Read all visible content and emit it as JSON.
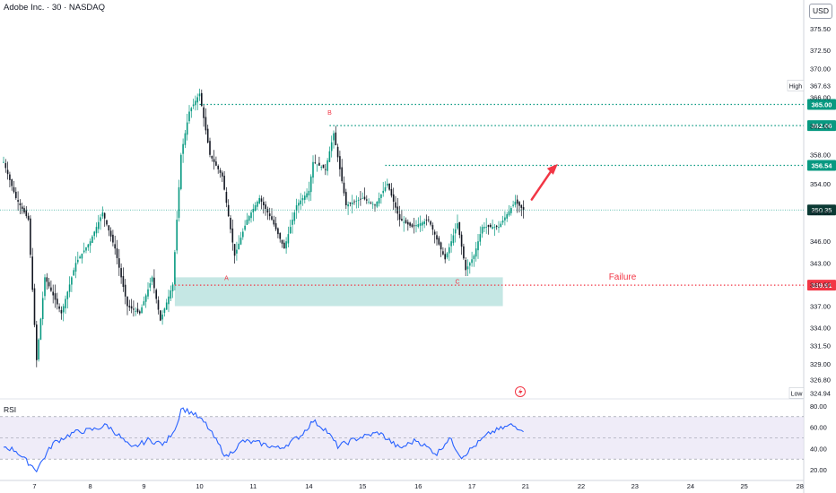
{
  "header": {
    "title": "Adobe Inc. · 30 · NASDAQ",
    "currency": "USD"
  },
  "colors": {
    "up": "#089981",
    "down": "#131722",
    "green_line": "#089981",
    "red_line": "#f23645",
    "zone": "#b2dfdb",
    "rsi": "#2962ff",
    "rsi_band": "#e8e4f5"
  },
  "chart_data": [
    {
      "type": "candlestick",
      "symbol": "Adobe Inc.",
      "interval": "30",
      "exchange": "NASDAQ",
      "currency": "USD",
      "ylim": [
        323.5,
        378.5
      ],
      "y_ticks": [
        375.5,
        372.5,
        370.0,
        366.0,
        362.0,
        358.0,
        354.0,
        350.0,
        346.0,
        343.0,
        340.0,
        337.0,
        334.0,
        331.5,
        329.0,
        326.8
      ],
      "y_tick_labels": [
        "375.50",
        "372.50",
        "370.00",
        "366.00",
        "362.00",
        "358.00",
        "354.00",
        "350.00",
        "346.00",
        "343.00",
        "340.00",
        "337.00",
        "334.00",
        "331.50",
        "329.00",
        "326.80"
      ],
      "x_ticks": [
        "7",
        "8",
        "9",
        "10",
        "11",
        "14",
        "15",
        "16",
        "17",
        "21",
        "22",
        "23",
        "24",
        "25",
        "28"
      ],
      "high": 367.63,
      "low": 324.94,
      "last_price": 350.35,
      "levels": [
        365.0,
        362.06,
        356.54,
        339.91
      ],
      "level_labels": [
        "365.00",
        "362.06",
        "356.54",
        "339.91"
      ],
      "high_label": "High",
      "low_label": "Low",
      "high_value": "367.63",
      "low_value": "324.94",
      "last_label": "350.35",
      "support_zone": [
        337.0,
        341.0
      ],
      "point_labels": [
        "A",
        "B",
        "C"
      ],
      "point_prices": [
        341.5,
        362.8,
        341.0
      ],
      "annotation": "Failure",
      "key_points": [
        {
          "bar": 0,
          "price": 357.0
        },
        {
          "bar": 6,
          "price": 352.0
        },
        {
          "bar": 12,
          "price": 349.0
        },
        {
          "bar": 16,
          "price": 329.5
        },
        {
          "bar": 20,
          "price": 341.0
        },
        {
          "bar": 28,
          "price": 336.0
        },
        {
          "bar": 35,
          "price": 343.0
        },
        {
          "bar": 42,
          "price": 346.0
        },
        {
          "bar": 48,
          "price": 350.0
        },
        {
          "bar": 54,
          "price": 345.0
        },
        {
          "bar": 60,
          "price": 337.0
        },
        {
          "bar": 66,
          "price": 336.0
        },
        {
          "bar": 72,
          "price": 341.0
        },
        {
          "bar": 76,
          "price": 335.0
        },
        {
          "bar": 82,
          "price": 340.0
        },
        {
          "bar": 86,
          "price": 358.0
        },
        {
          "bar": 90,
          "price": 364.0
        },
        {
          "bar": 95,
          "price": 366.5
        },
        {
          "bar": 100,
          "price": 358.0
        },
        {
          "bar": 106,
          "price": 355.0
        },
        {
          "bar": 112,
          "price": 344.0
        },
        {
          "bar": 118,
          "price": 349.0
        },
        {
          "bar": 124,
          "price": 352.0
        },
        {
          "bar": 130,
          "price": 349.0
        },
        {
          "bar": 136,
          "price": 345.0
        },
        {
          "bar": 142,
          "price": 351.0
        },
        {
          "bar": 148,
          "price": 353.0
        },
        {
          "bar": 150,
          "price": 357.0
        },
        {
          "bar": 156,
          "price": 356.0
        },
        {
          "bar": 160,
          "price": 361.0
        },
        {
          "bar": 166,
          "price": 351.0
        },
        {
          "bar": 174,
          "price": 352.0
        },
        {
          "bar": 180,
          "price": 351.0
        },
        {
          "bar": 186,
          "price": 354.0
        },
        {
          "bar": 192,
          "price": 349.0
        },
        {
          "bar": 198,
          "price": 348.0
        },
        {
          "bar": 206,
          "price": 349.0
        },
        {
          "bar": 214,
          "price": 343.5
        },
        {
          "bar": 220,
          "price": 348.5
        },
        {
          "bar": 224,
          "price": 342.0
        },
        {
          "bar": 228,
          "price": 344.0
        },
        {
          "bar": 232,
          "price": 348.0
        },
        {
          "bar": 240,
          "price": 348.0
        },
        {
          "bar": 248,
          "price": 351.5
        },
        {
          "bar": 252,
          "price": 350.35
        }
      ]
    },
    {
      "type": "line",
      "name": "RSI",
      "ylim": [
        15,
        85
      ],
      "y_ticks": [
        80,
        60,
        40,
        20
      ],
      "y_tick_labels": [
        "80.00",
        "60.00",
        "40.00",
        "20.00"
      ],
      "bands": [
        70,
        30
      ],
      "midline": 50,
      "key_points": [
        {
          "bar": 0,
          "value": 42
        },
        {
          "bar": 6,
          "value": 38
        },
        {
          "bar": 10,
          "value": 30
        },
        {
          "bar": 16,
          "value": 20
        },
        {
          "bar": 24,
          "value": 45
        },
        {
          "bar": 34,
          "value": 55
        },
        {
          "bar": 44,
          "value": 58
        },
        {
          "bar": 50,
          "value": 62
        },
        {
          "bar": 56,
          "value": 52
        },
        {
          "bar": 62,
          "value": 40
        },
        {
          "bar": 70,
          "value": 48
        },
        {
          "bar": 78,
          "value": 44
        },
        {
          "bar": 84,
          "value": 62
        },
        {
          "bar": 86,
          "value": 78
        },
        {
          "bar": 92,
          "value": 73
        },
        {
          "bar": 98,
          "value": 63
        },
        {
          "bar": 108,
          "value": 32
        },
        {
          "bar": 116,
          "value": 47
        },
        {
          "bar": 124,
          "value": 45
        },
        {
          "bar": 134,
          "value": 40
        },
        {
          "bar": 144,
          "value": 52
        },
        {
          "bar": 150,
          "value": 66
        },
        {
          "bar": 156,
          "value": 58
        },
        {
          "bar": 162,
          "value": 42
        },
        {
          "bar": 172,
          "value": 50
        },
        {
          "bar": 182,
          "value": 55
        },
        {
          "bar": 192,
          "value": 40
        },
        {
          "bar": 200,
          "value": 48
        },
        {
          "bar": 210,
          "value": 35
        },
        {
          "bar": 216,
          "value": 50
        },
        {
          "bar": 222,
          "value": 32
        },
        {
          "bar": 228,
          "value": 42
        },
        {
          "bar": 236,
          "value": 55
        },
        {
          "bar": 246,
          "value": 62
        },
        {
          "bar": 252,
          "value": 58
        }
      ]
    }
  ]
}
